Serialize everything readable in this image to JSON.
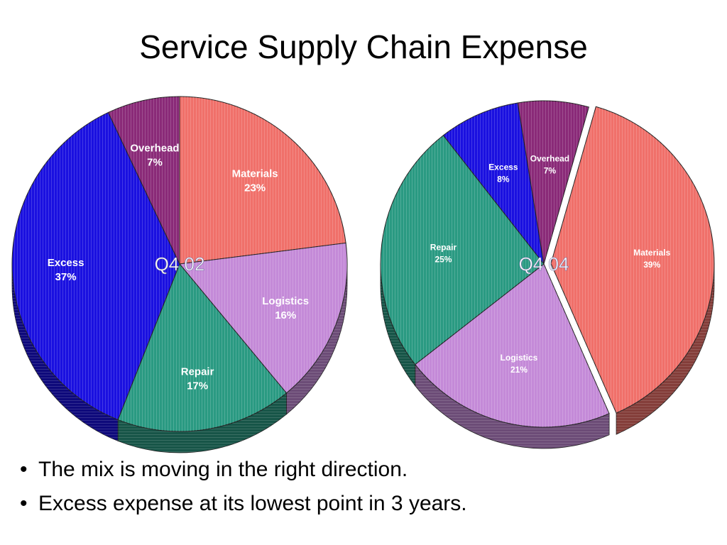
{
  "slide": {
    "title": "Service Supply Chain Expense",
    "bullets": [
      "The mix is moving in the right direction.",
      "Excess expense at its lowest point in 3 years."
    ]
  },
  "chart_data": [
    {
      "type": "pie",
      "center_label": "Q4 02",
      "slices": [
        {
          "label": "Materials",
          "value": 23,
          "value_label": "23%",
          "color": "#f0706a"
        },
        {
          "label": "Logistics",
          "value": 16,
          "value_label": "16%",
          "color": "#c48ad8"
        },
        {
          "label": "Repair",
          "value": 17,
          "value_label": "17%",
          "color": "#2a9a82"
        },
        {
          "label": "Excess",
          "value": 37,
          "value_label": "37%",
          "color": "#1a10e0"
        },
        {
          "label": "Overhead",
          "value": 7,
          "value_label": "7%",
          "color": "#8a2a78"
        }
      ]
    },
    {
      "type": "pie",
      "center_label": "Q4 04",
      "slices": [
        {
          "label": "Materials",
          "value": 39,
          "value_label": "39%",
          "color": "#f0706a"
        },
        {
          "label": "Logistics",
          "value": 21,
          "value_label": "21%",
          "color": "#c48ad8"
        },
        {
          "label": "Repair",
          "value": 25,
          "value_label": "25%",
          "color": "#2a9a82"
        },
        {
          "label": "Excess",
          "value": 8,
          "value_label": "8%",
          "color": "#1a10e0"
        },
        {
          "label": "Overhead",
          "value": 7,
          "value_label": "7%",
          "color": "#8a2a78"
        }
      ]
    }
  ]
}
